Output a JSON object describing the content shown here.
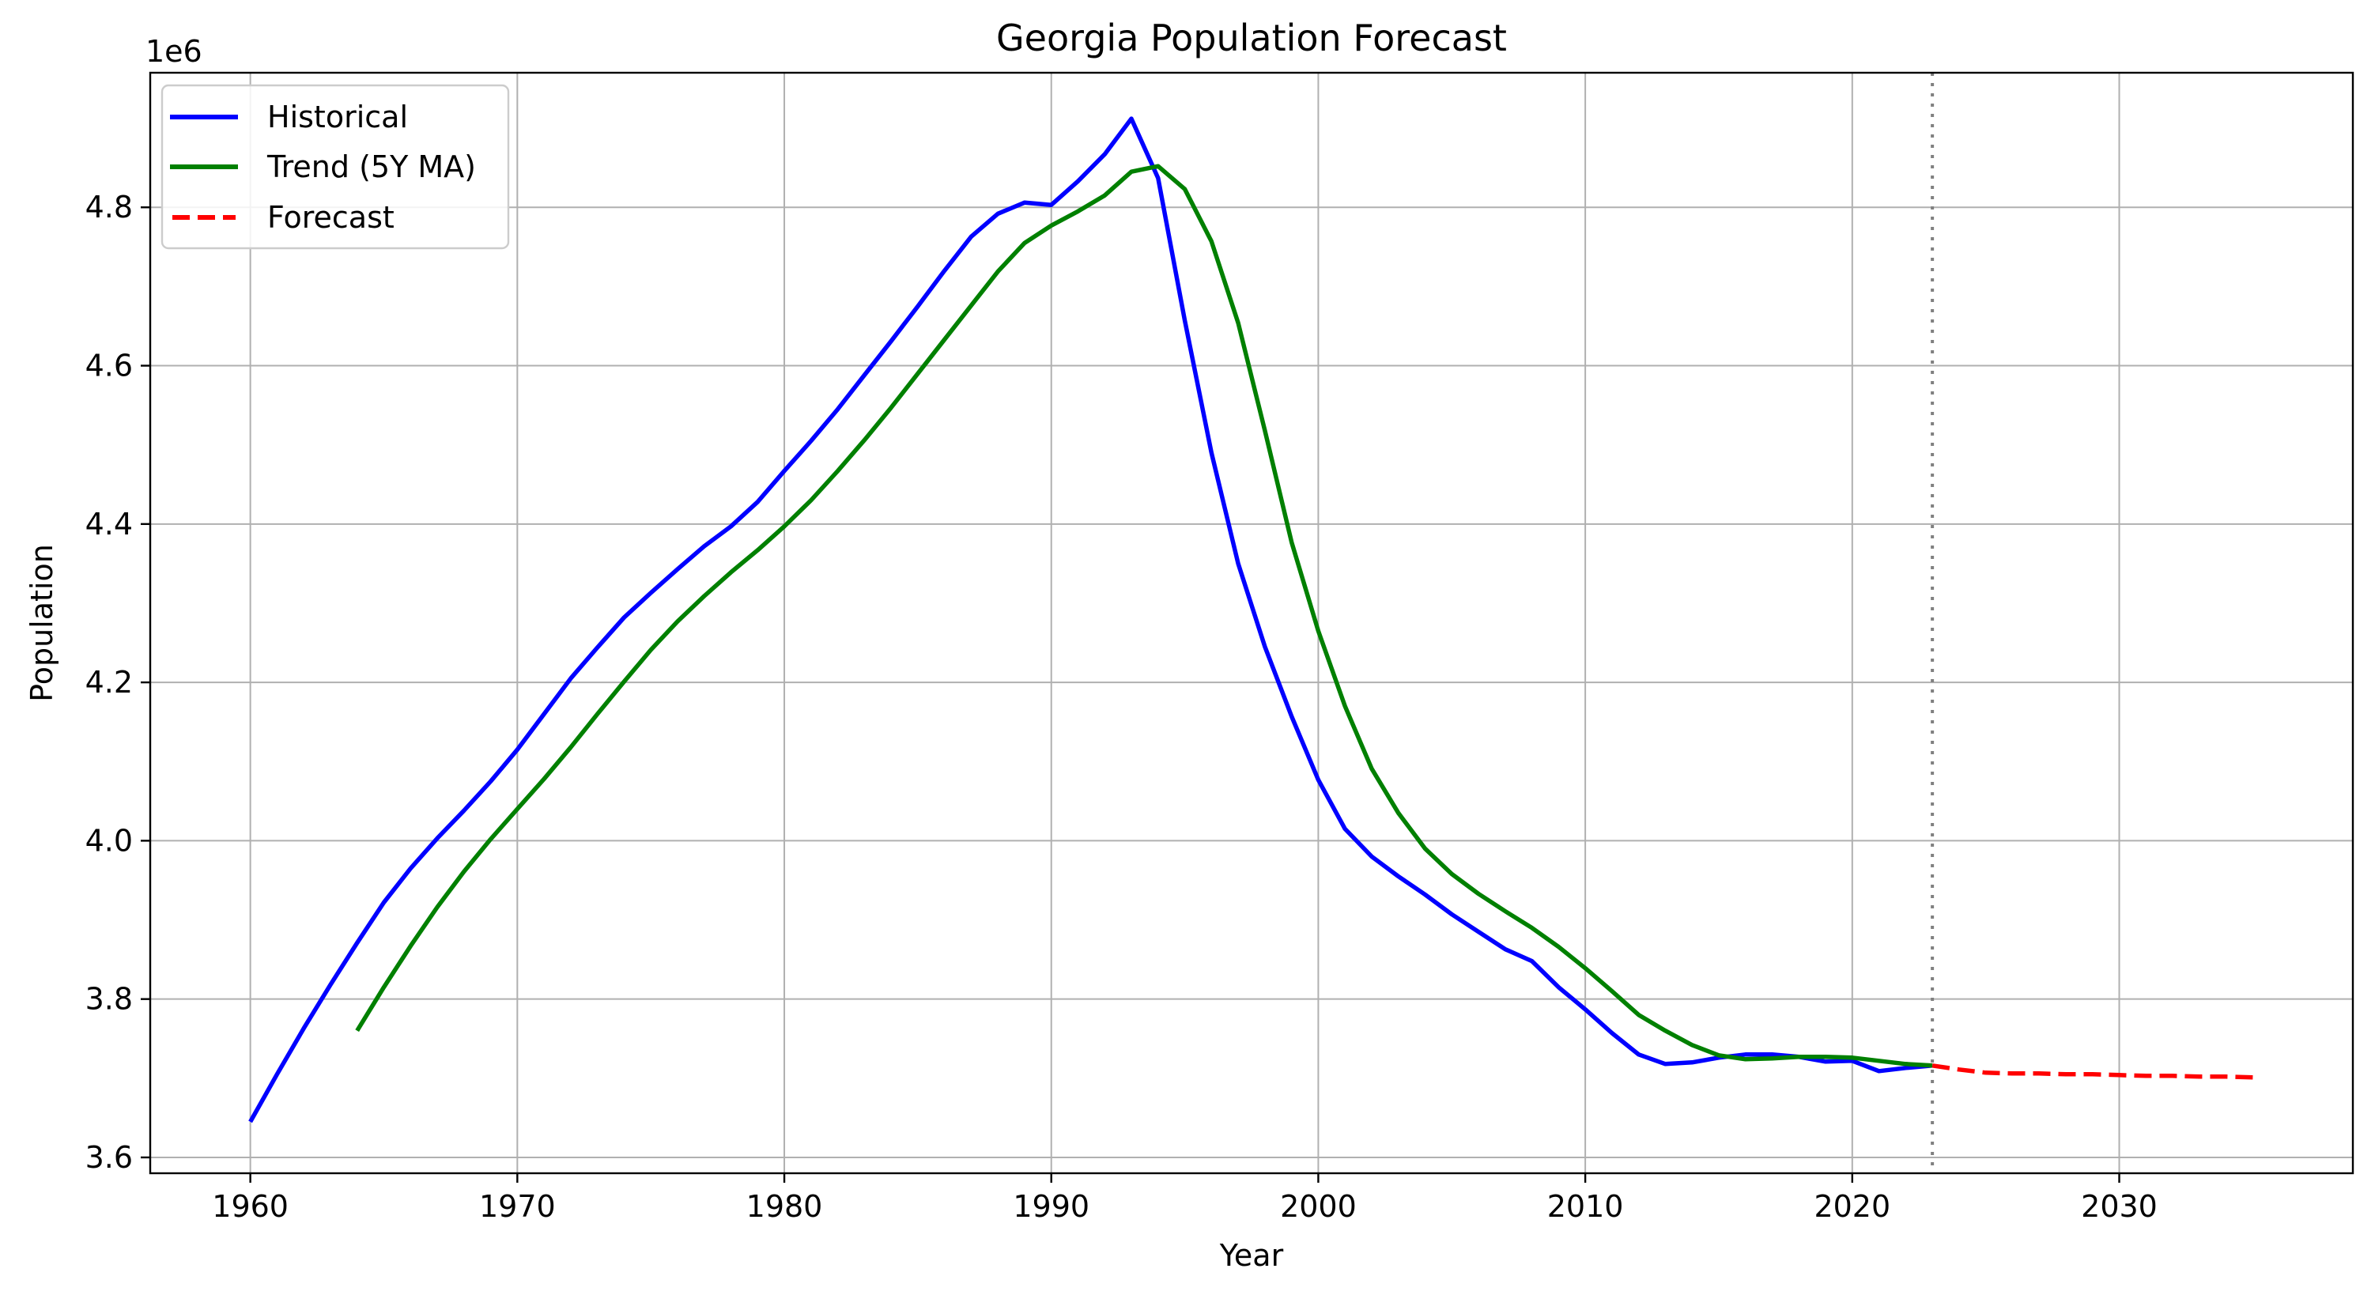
{
  "chart_data": {
    "type": "line",
    "title": "Georgia Population Forecast",
    "xlabel": "Year",
    "ylabel": "Population",
    "offset_text": "1e6",
    "xlim": [
      1956.25,
      2038.75
    ],
    "ylim": [
      3.58,
      4.97
    ],
    "y_scale_divisor": 1000000,
    "xticks": [
      {
        "value": 1960,
        "label": "1960"
      },
      {
        "value": 1970,
        "label": "1970"
      },
      {
        "value": 1980,
        "label": "1980"
      },
      {
        "value": 1990,
        "label": "1990"
      },
      {
        "value": 2000,
        "label": "2000"
      },
      {
        "value": 2010,
        "label": "2010"
      },
      {
        "value": 2020,
        "label": "2020"
      },
      {
        "value": 2030,
        "label": "2030"
      }
    ],
    "yticks": [
      {
        "value": 3.6,
        "label": "3.6"
      },
      {
        "value": 3.8,
        "label": "3.8"
      },
      {
        "value": 4.0,
        "label": "4.0"
      },
      {
        "value": 4.2,
        "label": "4.2"
      },
      {
        "value": 4.4,
        "label": "4.4"
      },
      {
        "value": 4.6,
        "label": "4.6"
      },
      {
        "value": 4.8,
        "label": "4.8"
      }
    ],
    "grid": true,
    "legend_position": "upper-left",
    "forecast_start_marker": {
      "x": 2023,
      "color": "#808080",
      "style": "dotted"
    },
    "series": [
      {
        "name": "Historical",
        "color": "#0000ff",
        "style": "solid",
        "x": [
          1960,
          1961,
          1962,
          1963,
          1964,
          1965,
          1966,
          1967,
          1968,
          1969,
          1970,
          1971,
          1972,
          1973,
          1974,
          1975,
          1976,
          1977,
          1978,
          1979,
          1980,
          1981,
          1982,
          1983,
          1984,
          1985,
          1986,
          1987,
          1988,
          1989,
          1990,
          1991,
          1992,
          1993,
          1994,
          1995,
          1996,
          1997,
          1998,
          1999,
          2000,
          2001,
          2002,
          2003,
          2004,
          2005,
          2006,
          2007,
          2008,
          2009,
          2010,
          2011,
          2012,
          2013,
          2014,
          2015,
          2016,
          2017,
          2018,
          2019,
          2020,
          2021,
          2022,
          2023
        ],
        "y": [
          3645000,
          3705000,
          3763000,
          3818000,
          3871000,
          3922000,
          3965000,
          4003000,
          4038000,
          4075000,
          4115000,
          4160000,
          4205000,
          4244000,
          4282000,
          4313000,
          4343000,
          4372000,
          4397000,
          4428000,
          4467000,
          4505000,
          4545000,
          4588000,
          4631000,
          4675000,
          4720000,
          4763000,
          4792000,
          4806000,
          4803000,
          4833000,
          4867000,
          4912000,
          4837000,
          4657000,
          4490000,
          4350000,
          4245000,
          4157000,
          4077000,
          4015000,
          3980000,
          3955000,
          3932000,
          3907000,
          3885000,
          3863000,
          3848000,
          3815000,
          3787000,
          3757000,
          3730000,
          3718000,
          3720000,
          3726000,
          3730000,
          3730000,
          3727000,
          3721000,
          3722000,
          3709000,
          3713000,
          3716000
        ]
      },
      {
        "name": "Trend (5Y MA)",
        "color": "#008000",
        "style": "solid",
        "x": [
          1964,
          1965,
          1966,
          1967,
          1968,
          1969,
          1970,
          1971,
          1972,
          1973,
          1974,
          1975,
          1976,
          1977,
          1978,
          1979,
          1980,
          1981,
          1982,
          1983,
          1984,
          1985,
          1986,
          1987,
          1988,
          1989,
          1990,
          1991,
          1992,
          1993,
          1994,
          1995,
          1996,
          1997,
          1998,
          1999,
          2000,
          2001,
          2002,
          2003,
          2004,
          2005,
          2006,
          2007,
          2008,
          2009,
          2010,
          2011,
          2012,
          2013,
          2014,
          2015,
          2016,
          2017,
          2018,
          2019,
          2020,
          2021,
          2022,
          2023
        ],
        "y": [
          3760000,
          3815000,
          3867000,
          3916000,
          3961000,
          4002000,
          4040000,
          4078000,
          4118000,
          4160000,
          4201000,
          4241000,
          4277000,
          4309000,
          4339000,
          4367000,
          4397000,
          4430000,
          4467000,
          4506000,
          4547000,
          4590000,
          4633000,
          4676000,
          4719000,
          4755000,
          4777000,
          4795000,
          4815000,
          4845000,
          4852000,
          4823000,
          4757000,
          4654000,
          4518000,
          4377000,
          4265000,
          4170000,
          4091000,
          4035000,
          3990000,
          3958000,
          3933000,
          3911000,
          3890000,
          3866000,
          3839000,
          3810000,
          3780000,
          3760000,
          3742000,
          3729000,
          3724000,
          3725000,
          3727000,
          3727000,
          3726000,
          3722000,
          3718000,
          3716000
        ]
      },
      {
        "name": "Forecast",
        "color": "#ff0000",
        "style": "dashed",
        "x": [
          2023,
          2024,
          2025,
          2026,
          2027,
          2028,
          2029,
          2030,
          2031,
          2032,
          2033,
          2034,
          2035
        ],
        "y": [
          3716000,
          3711000,
          3707000,
          3706000,
          3706000,
          3705000,
          3705000,
          3704000,
          3703000,
          3703000,
          3702000,
          3702000,
          3701000
        ]
      }
    ]
  }
}
